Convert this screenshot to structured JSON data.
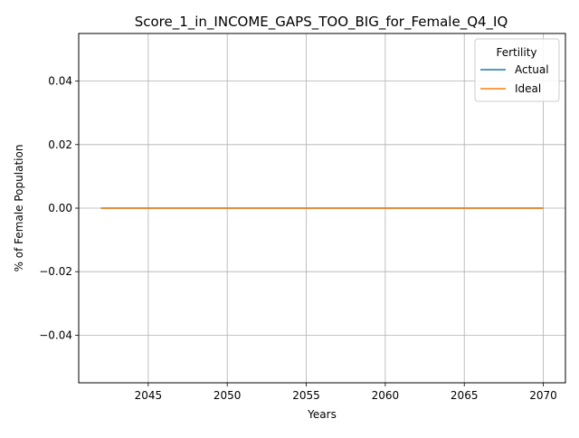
{
  "chart_data": {
    "type": "line",
    "title": "Score_1_in_INCOME_GAPS_TOO_BIG_for_Female_Q4_IQ",
    "xlabel": "Years",
    "ylabel": "% of Female Population",
    "xlim": [
      2040.6,
      2071.4
    ],
    "ylim": [
      -0.055,
      0.055
    ],
    "x_ticks": [
      2045,
      2050,
      2055,
      2060,
      2065,
      2070
    ],
    "y_ticks": [
      -0.04,
      -0.02,
      0.0,
      0.02,
      0.04
    ],
    "x_tick_labels": [
      "2045",
      "2050",
      "2055",
      "2060",
      "2065",
      "2070"
    ],
    "y_tick_labels": [
      "−0.04",
      "−0.02",
      "0.00",
      "0.02",
      "0.04"
    ],
    "grid": true,
    "legend": {
      "title": "Fertility",
      "placement": "top-right"
    },
    "x": [
      2042,
      2070
    ],
    "series": [
      {
        "name": "Actual",
        "color": "#1f77b4",
        "values": [
          0,
          0
        ]
      },
      {
        "name": "Ideal",
        "color": "#ff7f0e",
        "values": [
          0,
          0
        ]
      }
    ]
  }
}
